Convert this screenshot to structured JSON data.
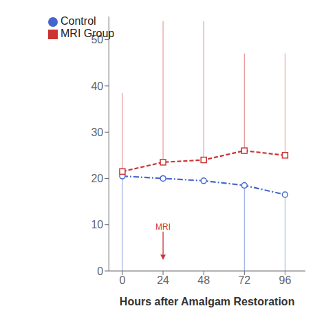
{
  "chart_data": {
    "type": "line",
    "x": [
      0,
      24,
      48,
      72,
      96
    ],
    "xlabel": "Hours after Amalgam Restoration",
    "xlim": [
      -8,
      108
    ],
    "xticks": [
      0,
      24,
      48,
      72,
      96
    ],
    "ylim": [
      0,
      55
    ],
    "yticks": [
      0,
      10,
      20,
      30,
      40,
      50
    ],
    "grid": false,
    "legend": "upper left",
    "series": [
      {
        "name": "Control",
        "color": "#4466cc",
        "values": [
          20.5,
          20.0,
          19.5,
          18.5,
          16.5
        ],
        "marker": "circle",
        "line_style": "dashdot",
        "error_lower": [
          20.5,
          0,
          0,
          18.5,
          16.5
        ],
        "error_upper": [
          0,
          0,
          0,
          0,
          0
        ]
      },
      {
        "name": "MRI Group",
        "color": "#cc3333",
        "values": [
          21.5,
          23.5,
          24.0,
          26.0,
          25.0
        ],
        "marker": "square",
        "line_style": "dashed",
        "error_lower": [
          0,
          0,
          0,
          0,
          0
        ],
        "error_upper": [
          17.0,
          30.5,
          30.0,
          21.0,
          22.0
        ]
      }
    ],
    "annotations": [
      {
        "text": "MRI",
        "x": 24,
        "y": 8.5,
        "arrow_y": 2.5,
        "color": "#cc3333"
      }
    ]
  }
}
